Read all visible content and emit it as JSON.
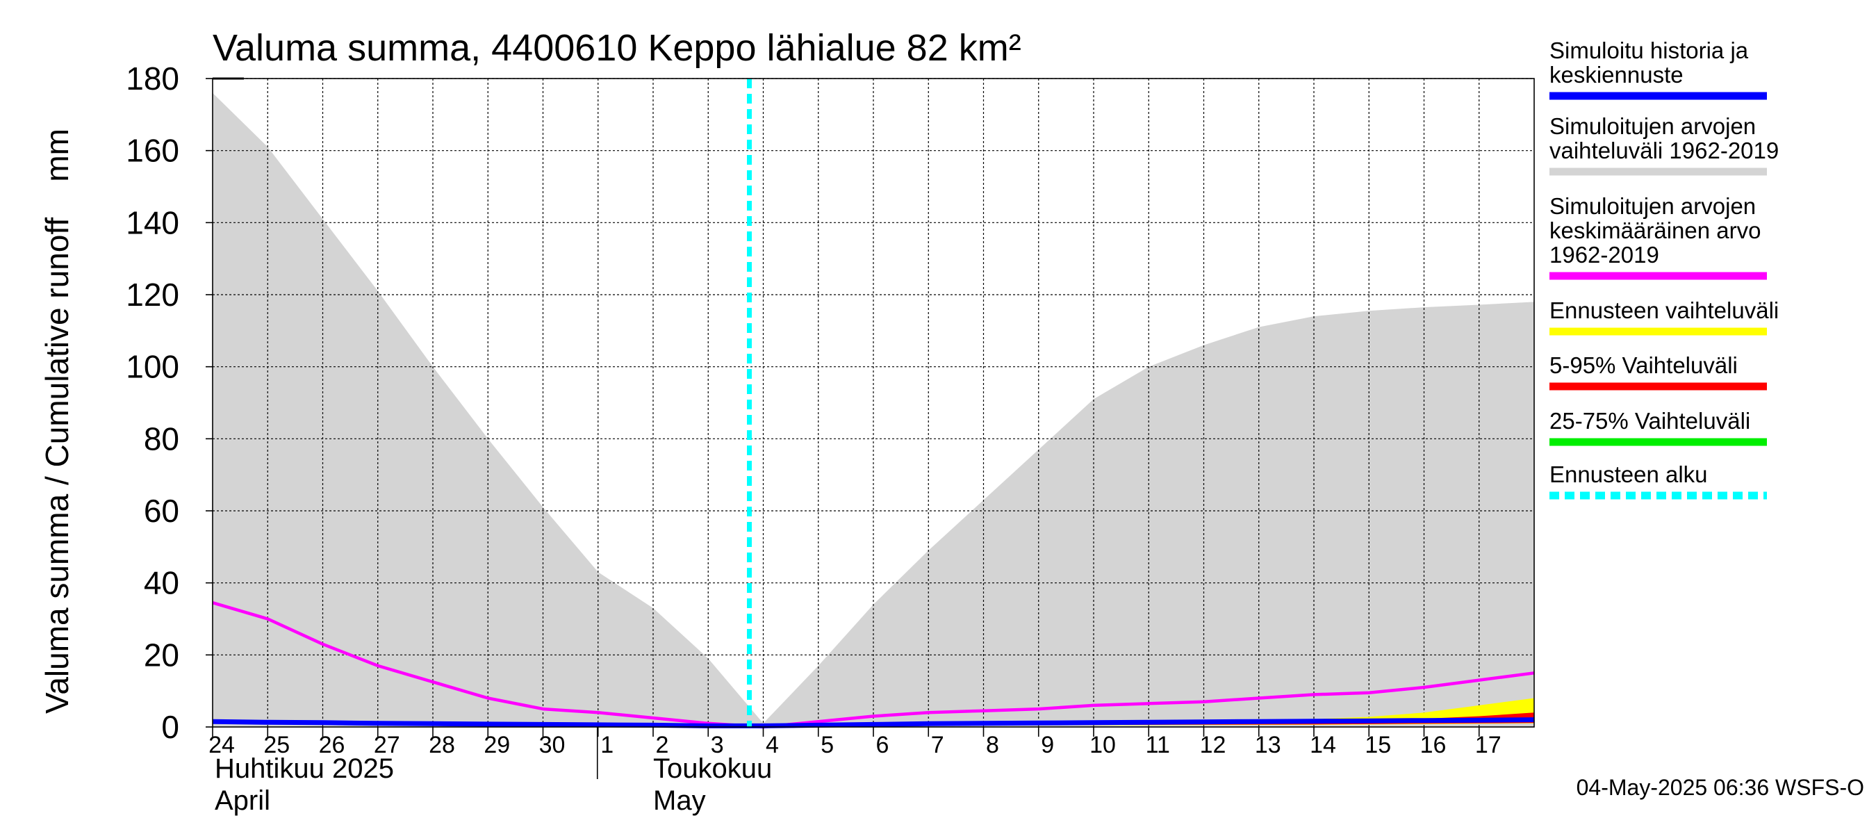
{
  "chart_data": {
    "type": "area",
    "title": "Valuma summa, 4400610 Keppo lähialue 82 km²",
    "ylabel": "Valuma summa / Cumulative runoff    mm",
    "ylim": [
      0,
      180
    ],
    "yticks": [
      "0",
      "20",
      "40",
      "60",
      "80",
      "100",
      "120",
      "140",
      "160",
      "180"
    ],
    "grid": true,
    "legend_position": "right",
    "x_dates": [
      "2025-04-24",
      "2025-04-25",
      "2025-04-26",
      "2025-04-27",
      "2025-04-28",
      "2025-04-29",
      "2025-04-30",
      "2025-05-01",
      "2025-05-02",
      "2025-05-03",
      "2025-05-04",
      "2025-05-05",
      "2025-05-06",
      "2025-05-07",
      "2025-05-08",
      "2025-05-09",
      "2025-05-10",
      "2025-05-11",
      "2025-05-12",
      "2025-05-13",
      "2025-05-14",
      "2025-05-15",
      "2025-05-16",
      "2025-05-17",
      "2025-05-18"
    ],
    "x_tick_labels": [
      "24",
      "25",
      "26",
      "27",
      "28",
      "29",
      "30",
      "1",
      "2",
      "3",
      "4",
      "5",
      "6",
      "7",
      "8",
      "9",
      "10",
      "11",
      "12",
      "13",
      "14",
      "15",
      "16",
      "17"
    ],
    "months": [
      {
        "line1": "Huhtikuu  2025",
        "line2": "April"
      },
      {
        "line1": "Toukokuu",
        "line2": "May"
      }
    ],
    "forecast_start": "2025-05-04",
    "series": [
      {
        "name": "Simuloitujen arvojen vaihteluväli 1962-2019",
        "kind": "band",
        "color": "#d4d4d4",
        "upper": [
          176,
          161,
          141,
          121,
          100,
          80,
          61,
          43,
          33,
          19,
          1,
          17,
          34,
          49,
          63,
          77,
          91,
          100,
          106,
          111,
          114,
          115.5,
          116.5,
          117.2,
          118
        ],
        "lower": [
          0,
          0,
          0,
          0,
          0,
          0,
          0,
          0,
          0,
          0,
          0,
          0,
          0,
          0,
          0,
          0,
          0,
          0,
          0,
          0,
          0,
          0,
          0,
          0,
          0
        ]
      },
      {
        "name": "Simuloitujen arvojen keskimääräinen arvo 1962-2019",
        "kind": "line",
        "color": "#ff00ff",
        "values": [
          34.5,
          30,
          23,
          17,
          12.5,
          8,
          5,
          4,
          2.5,
          1,
          0,
          1.5,
          3,
          4,
          4.5,
          5,
          6,
          6.5,
          7,
          8,
          9,
          9.5,
          11,
          13,
          15
        ]
      },
      {
        "name": "Ennusteen vaihteluväli",
        "kind": "band",
        "color": "#ffff00",
        "dates": [
          "2025-05-04",
          "2025-05-11",
          "2025-05-14",
          "2025-05-15",
          "2025-05-16",
          "2025-05-17",
          "2025-05-18"
        ],
        "upper": [
          0.5,
          1.5,
          2.2,
          2.8,
          4,
          6,
          8
        ],
        "lower": [
          0.3,
          0.5,
          0.6,
          0.7,
          0.8,
          0.9,
          1
        ]
      },
      {
        "name": "5-95% Vaihteluväli",
        "kind": "band",
        "color": "#ff0000",
        "dates": [
          "2025-05-04",
          "2025-05-11",
          "2025-05-14",
          "2025-05-15",
          "2025-05-16",
          "2025-05-17",
          "2025-05-18"
        ],
        "upper": [
          0.4,
          1.2,
          1.6,
          1.8,
          2.3,
          3,
          4
        ],
        "lower": [
          0.3,
          0.6,
          0.7,
          0.8,
          0.9,
          1,
          1.1
        ]
      },
      {
        "name": "25-75% Vaihteluväli",
        "kind": "band",
        "color": "#00ee00",
        "dates": [
          "2025-05-04",
          "2025-05-11",
          "2025-05-14",
          "2025-05-15",
          "2025-05-16",
          "2025-05-17",
          "2025-05-18"
        ],
        "upper": [
          0.35,
          1.0,
          1.3,
          1.4,
          1.6,
          1.8,
          2
        ],
        "lower": [
          0.3,
          0.8,
          1.0,
          1.1,
          1.2,
          1.3,
          1.4
        ]
      },
      {
        "name": "Simuloitu historia ja keskiennuste",
        "kind": "line",
        "color": "#0000ff",
        "values": [
          1.5,
          1.3,
          1.2,
          1.0,
          0.9,
          0.8,
          0.7,
          0.6,
          0.5,
          0.3,
          0.3,
          0.5,
          0.7,
          0.9,
          1.0,
          1.1,
          1.2,
          1.3,
          1.4,
          1.5,
          1.6,
          1.7,
          1.8,
          1.9,
          2
        ]
      }
    ],
    "legend": [
      {
        "lines": [
          "Simuloitu historia ja",
          "keskiennuste"
        ],
        "color": "#0000ff",
        "style": "solid"
      },
      {
        "lines": [
          "Simuloitujen arvojen",
          "vaihteluväli 1962-2019"
        ],
        "color": "#d4d4d4",
        "style": "solid"
      },
      {
        "lines": [
          "Simuloitujen arvojen",
          "keskimääräinen arvo",
          "   1962-2019"
        ],
        "color": "#ff00ff",
        "style": "solid"
      },
      {
        "lines": [
          "Ennusteen vaihteluväli"
        ],
        "color": "#ffff00",
        "style": "solid"
      },
      {
        "lines": [
          "5-95% Vaihteluväli"
        ],
        "color": "#ff0000",
        "style": "solid"
      },
      {
        "lines": [
          "25-75% Vaihteluväli"
        ],
        "color": "#00ee00",
        "style": "solid"
      },
      {
        "lines": [
          "Ennusteen alku"
        ],
        "color": "#00ffff",
        "style": "dashed"
      }
    ],
    "timestamp": "04-May-2025 06:36 WSFS-O"
  }
}
